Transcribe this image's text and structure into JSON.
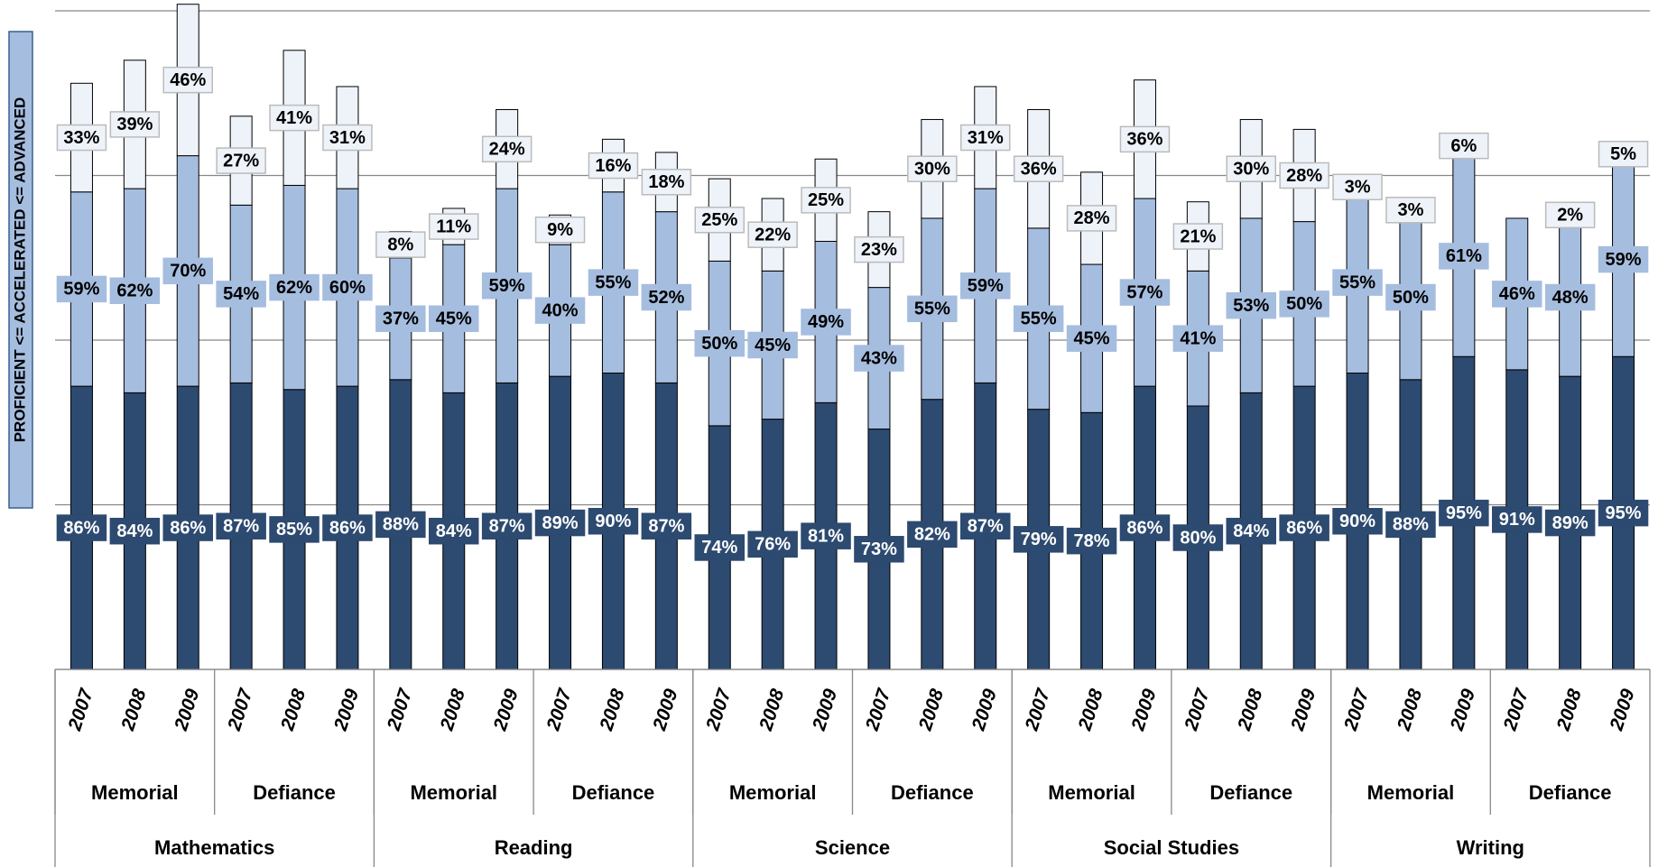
{
  "chart_data": {
    "type": "stacked_bar",
    "y_label": "PROFICIENT <= ACCELERATED <= ADVANCED",
    "categories": [
      "2007",
      "2008",
      "2009",
      "2007",
      "2008",
      "2009",
      "2007",
      "2008",
      "2009",
      "2007",
      "2008",
      "2009",
      "2007",
      "2008",
      "2009",
      "2007",
      "2008",
      "2009",
      "2007",
      "2008",
      "2009",
      "2007",
      "2008",
      "2009",
      "2007",
      "2008",
      "2009",
      "2007",
      "2008",
      "2009"
    ],
    "schools": [
      "Memorial",
      "Defiance",
      "Memorial",
      "Defiance",
      "Memorial",
      "Defiance",
      "Memorial",
      "Defiance",
      "Memorial",
      "Defiance"
    ],
    "subjects": [
      "Mathematics",
      "Reading",
      "Science",
      "Social Studies",
      "Writing"
    ],
    "series": [
      {
        "color": "#2d4a70",
        "label_color": "#ffffff",
        "values": [
          86,
          84,
          86,
          87,
          85,
          86,
          88,
          84,
          87,
          89,
          90,
          87,
          74,
          76,
          81,
          73,
          82,
          87,
          79,
          78,
          86,
          80,
          84,
          86,
          90,
          88,
          95,
          91,
          89,
          95
        ],
        "value_labels": [
          "86%",
          "84%",
          "86%",
          "87%",
          "85%",
          "86%",
          "88%",
          "84%",
          "87%",
          "89%",
          "90%",
          "87%",
          "74%",
          "76%",
          "81%",
          "73%",
          "82%",
          "87%",
          "79%",
          "78%",
          "86%",
          "80%",
          "84%",
          "86%",
          "90%",
          "88%",
          "95%",
          "91%",
          "89%",
          "95%"
        ]
      },
      {
        "color": "#a5bddf",
        "label_color": "#000000",
        "values": [
          59,
          62,
          70,
          54,
          62,
          60,
          37,
          45,
          59,
          40,
          55,
          52,
          50,
          45,
          49,
          43,
          55,
          59,
          55,
          45,
          57,
          41,
          53,
          50,
          55,
          50,
          61,
          46,
          48,
          59
        ],
        "value_labels": [
          "59%",
          "62%",
          "70%",
          "54%",
          "62%",
          "60%",
          "37%",
          "45%",
          "59%",
          "40%",
          "55%",
          "52%",
          "50%",
          "45%",
          "49%",
          "43%",
          "55%",
          "59%",
          "55%",
          "45%",
          "57%",
          "41%",
          "53%",
          "50%",
          "55%",
          "50%",
          "61%",
          "46%",
          "48%",
          "59%"
        ]
      },
      {
        "color": "#eef3fa",
        "label_color": "#000000",
        "values": [
          33,
          39,
          46,
          27,
          41,
          31,
          8,
          11,
          24,
          9,
          16,
          18,
          25,
          22,
          25,
          23,
          30,
          31,
          36,
          28,
          36,
          21,
          30,
          28,
          3,
          3,
          6,
          null,
          2,
          5
        ],
        "value_labels": [
          "33%",
          "39%",
          "46%",
          "27%",
          "41%",
          "31%",
          "8%",
          "11%",
          "24%",
          "9%",
          "16%",
          "18%",
          "25%",
          "22%",
          "25%",
          "23%",
          "30%",
          "31%",
          "36%",
          "28%",
          "36%",
          "21%",
          "30%",
          "28%",
          "3%",
          "3%",
          "6%",
          null,
          "2%",
          "5%"
        ]
      }
    ],
    "ylim": [
      0,
      200
    ],
    "yticks": [
      0,
      50,
      100,
      150,
      200
    ],
    "grid": true
  }
}
